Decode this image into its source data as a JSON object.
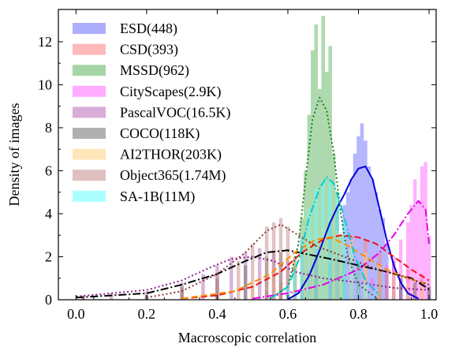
{
  "chart_data": {
    "type": "histogram-kde",
    "xlabel": "Macroscopic correlation",
    "ylabel": "Density of images",
    "xlim": [
      -0.05,
      1.02
    ],
    "ylim": [
      0,
      13.5
    ],
    "xticks": [
      0.0,
      0.2,
      0.4,
      0.6,
      0.8,
      1.0
    ],
    "xtick_labels": [
      "0.0",
      "0.2",
      "0.4",
      "0.6",
      "0.8",
      "1.0"
    ],
    "yticks": [
      0,
      2,
      4,
      6,
      8,
      10,
      12
    ],
    "ytick_labels": [
      "0",
      "2",
      "4",
      "6",
      "8",
      "10",
      "12"
    ],
    "legend_position": "top-left",
    "grid": false,
    "bin_width": 0.01,
    "series": [
      {
        "name": "ESD(448)",
        "color": "#6b6bff",
        "line_color": "#0000dd",
        "dash": "solid",
        "hist": [
          [
            0.64,
            0.4
          ],
          [
            0.66,
            1.0
          ],
          [
            0.68,
            1.6
          ],
          [
            0.7,
            2.6
          ],
          [
            0.72,
            3.6
          ],
          [
            0.74,
            4.2
          ],
          [
            0.76,
            4.4
          ],
          [
            0.77,
            5.0
          ],
          [
            0.78,
            5.6
          ],
          [
            0.79,
            6.8
          ],
          [
            0.8,
            7.6
          ],
          [
            0.81,
            8.2
          ],
          [
            0.82,
            7.4
          ],
          [
            0.83,
            6.2
          ],
          [
            0.84,
            5.6
          ],
          [
            0.85,
            5.0
          ],
          [
            0.86,
            4.2
          ],
          [
            0.87,
            3.8
          ],
          [
            0.88,
            2.6
          ],
          [
            0.9,
            1.8
          ],
          [
            0.92,
            1.0
          ],
          [
            0.94,
            0.6
          ]
        ],
        "kde": [
          [
            0.6,
            0.02
          ],
          [
            0.63,
            0.3
          ],
          [
            0.66,
            1.1
          ],
          [
            0.69,
            2.3
          ],
          [
            0.72,
            3.6
          ],
          [
            0.74,
            4.3
          ],
          [
            0.76,
            4.9
          ],
          [
            0.78,
            5.6
          ],
          [
            0.8,
            6.1
          ],
          [
            0.82,
            6.2
          ],
          [
            0.84,
            5.6
          ],
          [
            0.86,
            4.2
          ],
          [
            0.88,
            2.8
          ],
          [
            0.9,
            1.6
          ],
          [
            0.92,
            0.8
          ],
          [
            0.94,
            0.3
          ],
          [
            0.97,
            0.05
          ]
        ]
      },
      {
        "name": "CSD(393)",
        "color": "#ff7f7f",
        "line_color": "#ee1111",
        "dash": "8,4",
        "hist": [
          [
            0.54,
            0.4
          ],
          [
            0.58,
            0.8
          ],
          [
            0.62,
            1.4
          ],
          [
            0.66,
            2.2
          ],
          [
            0.7,
            2.8
          ],
          [
            0.74,
            3.2
          ],
          [
            0.78,
            3.0
          ],
          [
            0.82,
            2.8
          ],
          [
            0.86,
            2.2
          ],
          [
            0.9,
            1.8
          ],
          [
            0.94,
            1.4
          ],
          [
            0.98,
            1.2
          ]
        ],
        "kde": [
          [
            0.3,
            0.05
          ],
          [
            0.4,
            0.2
          ],
          [
            0.5,
            0.6
          ],
          [
            0.58,
            1.3
          ],
          [
            0.64,
            2.2
          ],
          [
            0.7,
            2.8
          ],
          [
            0.75,
            3.0
          ],
          [
            0.8,
            2.9
          ],
          [
            0.85,
            2.6
          ],
          [
            0.9,
            2.0
          ],
          [
            0.95,
            1.4
          ],
          [
            1.0,
            0.9
          ]
        ]
      },
      {
        "name": "MSSD(962)",
        "color": "#5db35d",
        "line_color": "#1a7f1a",
        "dash": "2,3",
        "hist": [
          [
            0.6,
            0.6
          ],
          [
            0.62,
            1.6
          ],
          [
            0.64,
            3.8
          ],
          [
            0.65,
            6.0
          ],
          [
            0.66,
            8.6
          ],
          [
            0.67,
            11.6
          ],
          [
            0.68,
            12.8
          ],
          [
            0.69,
            9.8
          ],
          [
            0.7,
            13.2
          ],
          [
            0.71,
            10.6
          ],
          [
            0.72,
            11.8
          ],
          [
            0.73,
            6.8
          ],
          [
            0.74,
            5.0
          ],
          [
            0.75,
            3.0
          ],
          [
            0.76,
            1.8
          ],
          [
            0.78,
            0.8
          ],
          [
            0.8,
            0.3
          ]
        ],
        "kde": [
          [
            0.55,
            0.05
          ],
          [
            0.6,
            0.6
          ],
          [
            0.63,
            2.6
          ],
          [
            0.65,
            5.6
          ],
          [
            0.67,
            8.4
          ],
          [
            0.69,
            9.4
          ],
          [
            0.71,
            8.8
          ],
          [
            0.73,
            6.8
          ],
          [
            0.75,
            4.0
          ],
          [
            0.77,
            2.0
          ],
          [
            0.8,
            0.7
          ],
          [
            0.85,
            0.1
          ]
        ]
      },
      {
        "name": "CityScapes(2.9K)",
        "color": "#ff66ff",
        "line_color": "#e600e6",
        "dash": "10,3,2,3",
        "hist": [
          [
            0.8,
            0.6
          ],
          [
            0.84,
            1.0
          ],
          [
            0.88,
            1.6
          ],
          [
            0.9,
            2.0
          ],
          [
            0.92,
            2.8
          ],
          [
            0.94,
            3.6
          ],
          [
            0.95,
            4.4
          ],
          [
            0.96,
            5.6
          ],
          [
            0.97,
            4.6
          ],
          [
            0.98,
            6.2
          ],
          [
            0.99,
            6.4
          ],
          [
            1.0,
            3.0
          ]
        ],
        "kde": [
          [
            0.5,
            0.05
          ],
          [
            0.6,
            0.3
          ],
          [
            0.7,
            0.7
          ],
          [
            0.8,
            1.4
          ],
          [
            0.86,
            2.2
          ],
          [
            0.9,
            3.0
          ],
          [
            0.94,
            4.0
          ],
          [
            0.97,
            4.6
          ],
          [
            0.99,
            4.2
          ],
          [
            1.0,
            2.6
          ]
        ]
      },
      {
        "name": "PascalVOC(16.5K)",
        "color": "#b86cb8",
        "line_color": "#882288",
        "dash": "2,3",
        "hist": [
          [
            0.02,
            0.2
          ],
          [
            0.1,
            0.3
          ],
          [
            0.2,
            0.4
          ],
          [
            0.3,
            0.8
          ],
          [
            0.36,
            1.2
          ],
          [
            0.4,
            1.6
          ],
          [
            0.44,
            2.0
          ],
          [
            0.48,
            2.2
          ],
          [
            0.52,
            2.4
          ],
          [
            0.56,
            2.2
          ],
          [
            0.6,
            1.8
          ],
          [
            0.66,
            1.4
          ],
          [
            0.72,
            1.0
          ],
          [
            0.8,
            0.8
          ],
          [
            0.9,
            0.6
          ],
          [
            1.0,
            0.5
          ]
        ],
        "kde": [
          [
            0.0,
            0.15
          ],
          [
            0.1,
            0.3
          ],
          [
            0.2,
            0.45
          ],
          [
            0.3,
            0.9
          ],
          [
            0.38,
            1.5
          ],
          [
            0.44,
            1.9
          ],
          [
            0.5,
            2.0
          ],
          [
            0.56,
            1.8
          ],
          [
            0.62,
            1.3
          ],
          [
            0.7,
            1.0
          ],
          [
            0.8,
            0.8
          ],
          [
            0.9,
            0.55
          ],
          [
            1.0,
            0.45
          ]
        ]
      },
      {
        "name": "COCO(118K)",
        "color": "#707070",
        "line_color": "#000000",
        "dash": "10,3,2,3",
        "hist": [
          [
            0.02,
            0.1
          ],
          [
            0.2,
            0.2
          ],
          [
            0.3,
            0.6
          ],
          [
            0.4,
            1.0
          ],
          [
            0.48,
            1.6
          ],
          [
            0.54,
            2.0
          ],
          [
            0.58,
            2.2
          ],
          [
            0.62,
            2.0
          ],
          [
            0.68,
            1.9
          ],
          [
            0.74,
            1.8
          ],
          [
            0.8,
            1.6
          ],
          [
            0.86,
            1.4
          ],
          [
            0.92,
            1.0
          ],
          [
            0.96,
            0.8
          ],
          [
            1.0,
            0.6
          ]
        ],
        "kde": [
          [
            0.0,
            0.1
          ],
          [
            0.2,
            0.3
          ],
          [
            0.3,
            0.7
          ],
          [
            0.4,
            1.2
          ],
          [
            0.48,
            1.8
          ],
          [
            0.54,
            2.2
          ],
          [
            0.6,
            2.3
          ],
          [
            0.66,
            2.1
          ],
          [
            0.72,
            1.9
          ],
          [
            0.8,
            1.6
          ],
          [
            0.88,
            1.3
          ],
          [
            0.95,
            1.0
          ],
          [
            1.0,
            0.5
          ]
        ]
      },
      {
        "name": "AI2THOR(203K)",
        "color": "#ffd27f",
        "line_color": "#ff8c00",
        "dash": "8,4",
        "hist": [
          [
            0.5,
            0.6
          ],
          [
            0.56,
            1.2
          ],
          [
            0.62,
            2.0
          ],
          [
            0.66,
            2.8
          ],
          [
            0.7,
            3.4
          ],
          [
            0.74,
            3.2
          ],
          [
            0.78,
            2.8
          ],
          [
            0.82,
            2.2
          ],
          [
            0.86,
            1.6
          ],
          [
            0.9,
            1.2
          ],
          [
            0.94,
            0.8
          ],
          [
            0.98,
            0.6
          ]
        ],
        "kde": [
          [
            0.3,
            0.05
          ],
          [
            0.45,
            0.4
          ],
          [
            0.55,
            1.2
          ],
          [
            0.62,
            2.2
          ],
          [
            0.68,
            2.8
          ],
          [
            0.72,
            2.9
          ],
          [
            0.76,
            2.6
          ],
          [
            0.82,
            2.0
          ],
          [
            0.88,
            1.4
          ],
          [
            0.94,
            1.0
          ],
          [
            1.0,
            0.7
          ]
        ]
      },
      {
        "name": "Object365(1.74M)",
        "color": "#c48a8a",
        "line_color": "#8b3a3a",
        "dash": "2,3",
        "hist": [
          [
            0.3,
            0.5
          ],
          [
            0.4,
            1.2
          ],
          [
            0.46,
            1.8
          ],
          [
            0.5,
            2.6
          ],
          [
            0.54,
            3.4
          ],
          [
            0.56,
            3.6
          ],
          [
            0.58,
            3.8
          ],
          [
            0.6,
            3.4
          ],
          [
            0.64,
            2.8
          ],
          [
            0.68,
            2.4
          ],
          [
            0.74,
            2.0
          ],
          [
            0.8,
            1.6
          ],
          [
            0.88,
            1.2
          ],
          [
            0.96,
            0.8
          ]
        ],
        "kde": [
          [
            0.2,
            0.1
          ],
          [
            0.3,
            0.4
          ],
          [
            0.4,
            1.2
          ],
          [
            0.48,
            2.2
          ],
          [
            0.54,
            3.2
          ],
          [
            0.58,
            3.5
          ],
          [
            0.62,
            3.1
          ],
          [
            0.68,
            2.5
          ],
          [
            0.76,
            2.0
          ],
          [
            0.84,
            1.5
          ],
          [
            0.92,
            1.1
          ],
          [
            1.0,
            0.7
          ]
        ]
      },
      {
        "name": "SA-1B(11M)",
        "color": "#66ffff",
        "line_color": "#00cccc",
        "dash": "10,3,2,3",
        "hist": [
          [
            0.6,
            0.6
          ],
          [
            0.62,
            1.4
          ],
          [
            0.64,
            2.8
          ],
          [
            0.66,
            4.2
          ],
          [
            0.68,
            5.2
          ],
          [
            0.7,
            5.6
          ],
          [
            0.72,
            5.6
          ],
          [
            0.74,
            4.8
          ],
          [
            0.76,
            3.6
          ],
          [
            0.78,
            2.4
          ],
          [
            0.8,
            1.4
          ],
          [
            0.82,
            0.8
          ],
          [
            0.84,
            0.4
          ]
        ],
        "kde": [
          [
            0.55,
            0.05
          ],
          [
            0.6,
            0.6
          ],
          [
            0.63,
            1.8
          ],
          [
            0.66,
            3.8
          ],
          [
            0.69,
            5.2
          ],
          [
            0.71,
            5.7
          ],
          [
            0.73,
            5.4
          ],
          [
            0.75,
            4.4
          ],
          [
            0.77,
            3.2
          ],
          [
            0.79,
            2.0
          ],
          [
            0.82,
            0.9
          ],
          [
            0.86,
            0.2
          ]
        ]
      }
    ]
  }
}
